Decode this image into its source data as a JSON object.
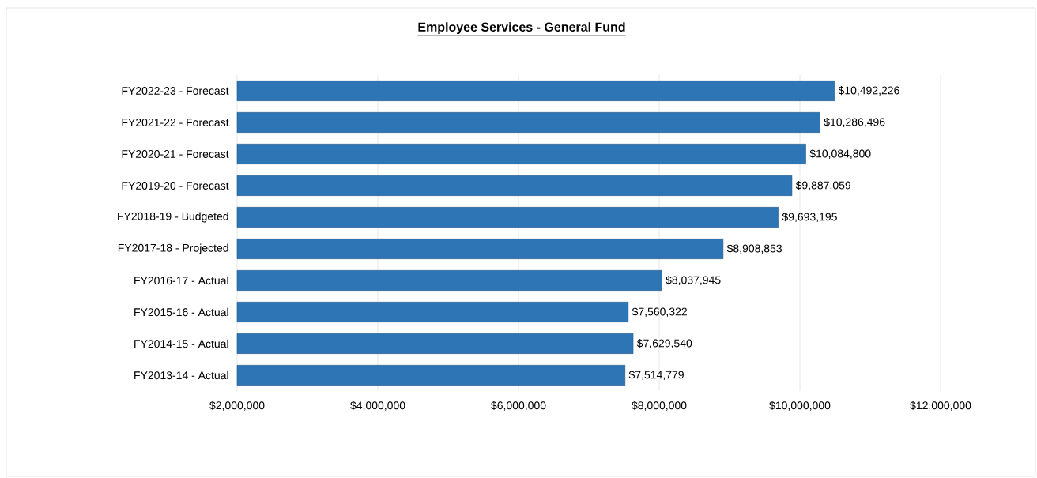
{
  "chart_data": {
    "type": "bar",
    "orientation": "horizontal",
    "title": "Employee Services - General Fund",
    "categories": [
      "FY2022-23 - Forecast",
      "FY2021-22 - Forecast",
      "FY2020-21 - Forecast",
      "FY2019-20 - Forecast",
      "FY2018-19 - Budgeted",
      "FY2017-18 - Projected",
      "FY2016-17 - Actual",
      "FY2015-16 - Actual",
      "FY2014-15 - Actual",
      "FY2013-14 - Actual"
    ],
    "values": [
      10492226,
      10286496,
      10084800,
      9887059,
      9693195,
      8908853,
      8037945,
      7560322,
      7629540,
      7514779
    ],
    "value_labels": [
      "$10,492,226",
      "$10,286,496",
      "$10,084,800",
      "$9,887,059",
      "$9,693,195",
      "$8,908,853",
      "$8,037,945",
      "$7,560,322",
      "$7,629,540",
      "$7,514,779"
    ],
    "color": "#2e75b6",
    "xlim": [
      2000000,
      12000000
    ],
    "xticks": [
      {
        "value": 2000000,
        "label": "$2,000,000"
      },
      {
        "value": 4000000,
        "label": "$4,000,000"
      },
      {
        "value": 6000000,
        "label": "$6,000,000"
      },
      {
        "value": 8000000,
        "label": "$8,000,000"
      },
      {
        "value": 10000000,
        "label": "$10,000,000"
      },
      {
        "value": 12000000,
        "label": "$12,000,000"
      }
    ],
    "grid": "x"
  }
}
